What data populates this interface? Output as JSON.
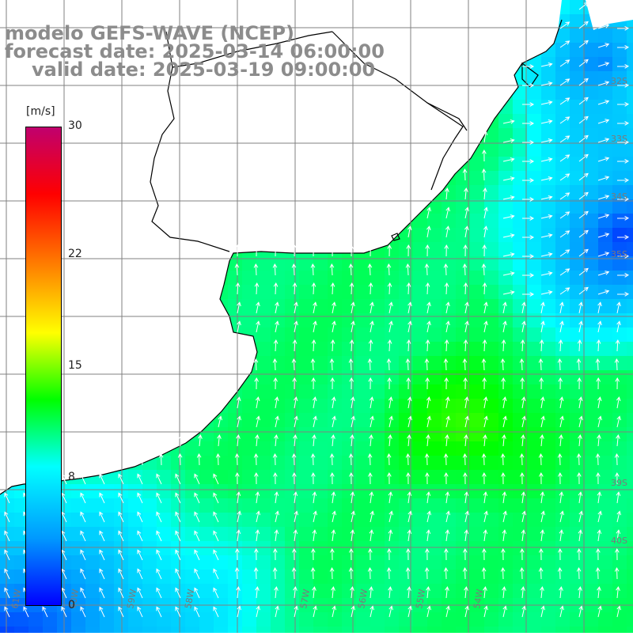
{
  "header": {
    "model_line": "modelo GEFS-WAVE (NCEP)",
    "forecast_line": "forecast date: 2025-03-14 06:00:00",
    "valid_line": "valid date: 2025-03-19 09:00:00"
  },
  "colorbar": {
    "unit": "[m/s]",
    "ticks": [
      "30",
      "22",
      "15",
      "8",
      "0"
    ],
    "tick_values": [
      30,
      22,
      15,
      8,
      0
    ],
    "min": 0,
    "max": 30,
    "colors": [
      "#0000ff",
      "#0099ff",
      "#00ffff",
      "#00ff00",
      "#ffff00",
      "#ff8000",
      "#ff0000",
      "#c0006e"
    ]
  },
  "map": {
    "lat_labels_right": [
      "32S",
      "33S",
      "34S",
      "35S",
      "39S",
      "40S"
    ],
    "lon_labels_bottom": [
      "61W",
      "60W",
      "59W",
      "58W",
      "57W",
      "56W",
      "55W",
      "54W"
    ],
    "field_colors": {
      "land": "#ffffff",
      "coast": "#000000",
      "grid": "#808080",
      "arrows": "#ffffff"
    }
  }
}
